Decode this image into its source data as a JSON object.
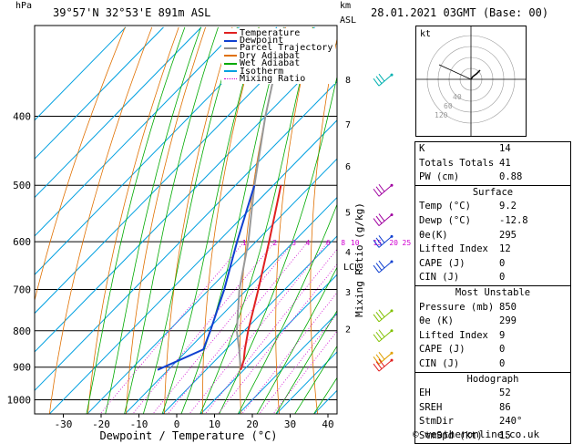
{
  "header": {
    "hpa_label": "hPa",
    "location": "39°57'N  32°53'E  891m  ASL",
    "km_label": "km",
    "asl_label": "ASL",
    "datetime": "28.01.2021  03GMT  (Base: 00)"
  },
  "footer": {
    "copyright": "© weatheronline.co.uk"
  },
  "chart_data": {
    "type": "skew-t",
    "xlabel": "Dewpoint / Temperature (°C)",
    "ylabel": "Mixing Ratio (g/kg)",
    "ylabel_left": "hPa",
    "xlim": [
      -40,
      40
    ],
    "x_ticks": [
      -30,
      -20,
      -10,
      0,
      10,
      20,
      30,
      40
    ],
    "pressure_levels": [
      400,
      500,
      600,
      700,
      800,
      900,
      1000
    ],
    "pressure_range": [
      300,
      1050
    ],
    "legend": [
      {
        "label": "Temperature",
        "color": "#e02020",
        "style": "solid"
      },
      {
        "label": "Dewpoint",
        "color": "#1040d0",
        "style": "solid"
      },
      {
        "label": "Parcel Trajectory",
        "color": "#909090",
        "style": "solid"
      },
      {
        "label": "Dry Adiabat",
        "color": "#e07000",
        "style": "solid"
      },
      {
        "label": "Wet Adiabat",
        "color": "#00aa00",
        "style": "solid"
      },
      {
        "label": "Isotherm",
        "color": "#00a0e0",
        "style": "solid"
      },
      {
        "label": "Mixing Ratio",
        "color": "#d000d0",
        "style": "dotted"
      }
    ],
    "mixing_ratio_labels": [
      "1",
      "2",
      "3",
      "4",
      "6",
      "8",
      "10",
      "15",
      "20",
      "25"
    ],
    "lcl_label": "LCL",
    "km_labels": [
      {
        "label": "8",
        "p": 355
      },
      {
        "label": "7",
        "p": 410
      },
      {
        "label": "6",
        "p": 470
      },
      {
        "label": "5",
        "p": 545
      },
      {
        "label": "4",
        "p": 620
      },
      {
        "label": "3",
        "p": 705
      },
      {
        "label": "2",
        "p": 795
      }
    ],
    "temperature": [
      {
        "p": 908,
        "t": 9.2
      },
      {
        "p": 880,
        "t": 7.5
      },
      {
        "p": 850,
        "t": 5.0
      },
      {
        "p": 800,
        "t": 1.0
      },
      {
        "p": 700,
        "t": -7.0
      },
      {
        "p": 600,
        "t": -16.5
      },
      {
        "p": 500,
        "t": -28.0
      }
    ],
    "dewpoint": [
      {
        "p": 908,
        "t": -12.8
      },
      {
        "p": 850,
        "t": -6.0
      },
      {
        "p": 800,
        "t": -9.0
      },
      {
        "p": 700,
        "t": -16.0
      },
      {
        "p": 600,
        "t": -25.0
      },
      {
        "p": 500,
        "t": -35.0
      }
    ],
    "parcel": [
      {
        "p": 908,
        "t": 9.2
      },
      {
        "p": 850,
        "t": 3.5
      },
      {
        "p": 800,
        "t": -2.0
      },
      {
        "p": 700,
        "t": -12.0
      },
      {
        "p": 600,
        "t": -22.0
      },
      {
        "p": 500,
        "t": -35.0
      },
      {
        "p": 400,
        "t": -50.0
      },
      {
        "p": 300,
        "t": -68.0
      }
    ],
    "wind_barbs": [
      {
        "p": 350,
        "color": "#00b0b0"
      },
      {
        "p": 500,
        "color": "#a000a0"
      },
      {
        "p": 550,
        "color": "#a000a0"
      },
      {
        "p": 590,
        "color": "#1040d0"
      },
      {
        "p": 640,
        "color": "#1040d0"
      },
      {
        "p": 750,
        "color": "#80c000"
      },
      {
        "p": 800,
        "color": "#80c000"
      },
      {
        "p": 860,
        "color": "#e0a000"
      },
      {
        "p": 880,
        "color": "#e02020"
      }
    ]
  },
  "hodograph": {
    "label": "kt",
    "ring_labels": [
      "40",
      "60",
      "120"
    ]
  },
  "indices": {
    "rows": [
      {
        "label": "K",
        "value": "14"
      },
      {
        "label": "Totals Totals",
        "value": "41"
      },
      {
        "label": "PW (cm)",
        "value": "0.88"
      }
    ]
  },
  "surface": {
    "title": "Surface",
    "rows": [
      {
        "label": "Temp (°C)",
        "value": "9.2"
      },
      {
        "label": "Dewp (°C)",
        "value": "-12.8"
      },
      {
        "label": "θe(K)",
        "value": "295"
      },
      {
        "label": "Lifted Index",
        "value": "12"
      },
      {
        "label": "CAPE (J)",
        "value": "0"
      },
      {
        "label": "CIN (J)",
        "value": "0"
      }
    ]
  },
  "most_unstable": {
    "title": "Most Unstable",
    "rows": [
      {
        "label": "Pressure (mb)",
        "value": "850"
      },
      {
        "label": "θe (K)",
        "value": "299"
      },
      {
        "label": "Lifted Index",
        "value": "9"
      },
      {
        "label": "CAPE (J)",
        "value": "0"
      },
      {
        "label": "CIN (J)",
        "value": "0"
      }
    ]
  },
  "hodograph_table": {
    "title": "Hodograph",
    "rows": [
      {
        "label": "EH",
        "value": "52"
      },
      {
        "label": "SREH",
        "value": "86"
      },
      {
        "label": "StmDir",
        "value": "240°"
      },
      {
        "label": "StmSpd (kt)",
        "value": "15"
      }
    ]
  }
}
